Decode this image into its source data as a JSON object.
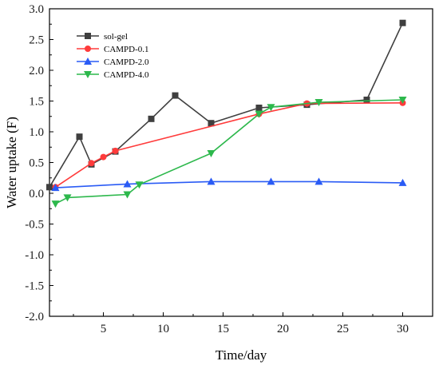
{
  "chart_data": {
    "type": "line",
    "title": "",
    "xlabel": "Time/day",
    "ylabel": "Water uptake (F)",
    "xlim": [
      0.5,
      32.5
    ],
    "ylim": [
      -2.0,
      3.0
    ],
    "xticks": [
      5,
      10,
      15,
      20,
      25,
      30
    ],
    "yticks": [
      -2.0,
      -1.5,
      -1.0,
      -0.5,
      0.0,
      0.5,
      1.0,
      1.5,
      2.0,
      2.5,
      3.0
    ],
    "x_tick_labels": [
      "5",
      "10",
      "15",
      "20",
      "25",
      "30"
    ],
    "y_tick_labels": [
      "-2.0",
      "-1.5",
      "-1.0",
      "-0.5",
      "0.0",
      "0.5",
      "1.0",
      "1.5",
      "2.0",
      "2.5",
      "3.0"
    ],
    "grid": false,
    "legend_position": "top-left",
    "series": [
      {
        "name": "sol-gel",
        "color": "#3f3f3f",
        "marker": "square",
        "x": [
          0.5,
          3,
          4,
          6,
          9,
          11,
          14,
          18,
          22,
          27,
          30
        ],
        "y": [
          0.1,
          0.92,
          0.47,
          0.68,
          1.21,
          1.59,
          1.14,
          1.39,
          1.44,
          1.52,
          2.77
        ]
      },
      {
        "name": "CAMPD-0.1",
        "color": "#ff3b3b",
        "marker": "circle",
        "x": [
          1,
          4,
          5,
          6,
          18,
          22,
          30
        ],
        "y": [
          0.1,
          0.49,
          0.59,
          0.69,
          1.29,
          1.46,
          1.47
        ]
      },
      {
        "name": "CAMPD-2.0",
        "color": "#2a5bf5",
        "marker": "triangle-up",
        "x": [
          1,
          7,
          14,
          19,
          23,
          30
        ],
        "y": [
          0.09,
          0.15,
          0.19,
          0.19,
          0.19,
          0.17
        ]
      },
      {
        "name": "CAMPD-4.0",
        "color": "#2db84c",
        "marker": "triangle-down",
        "x": [
          1,
          2,
          7,
          8,
          14,
          18,
          19,
          23,
          30
        ],
        "y": [
          -0.17,
          -0.07,
          -0.02,
          0.14,
          0.65,
          1.29,
          1.4,
          1.48,
          1.52
        ]
      }
    ]
  }
}
